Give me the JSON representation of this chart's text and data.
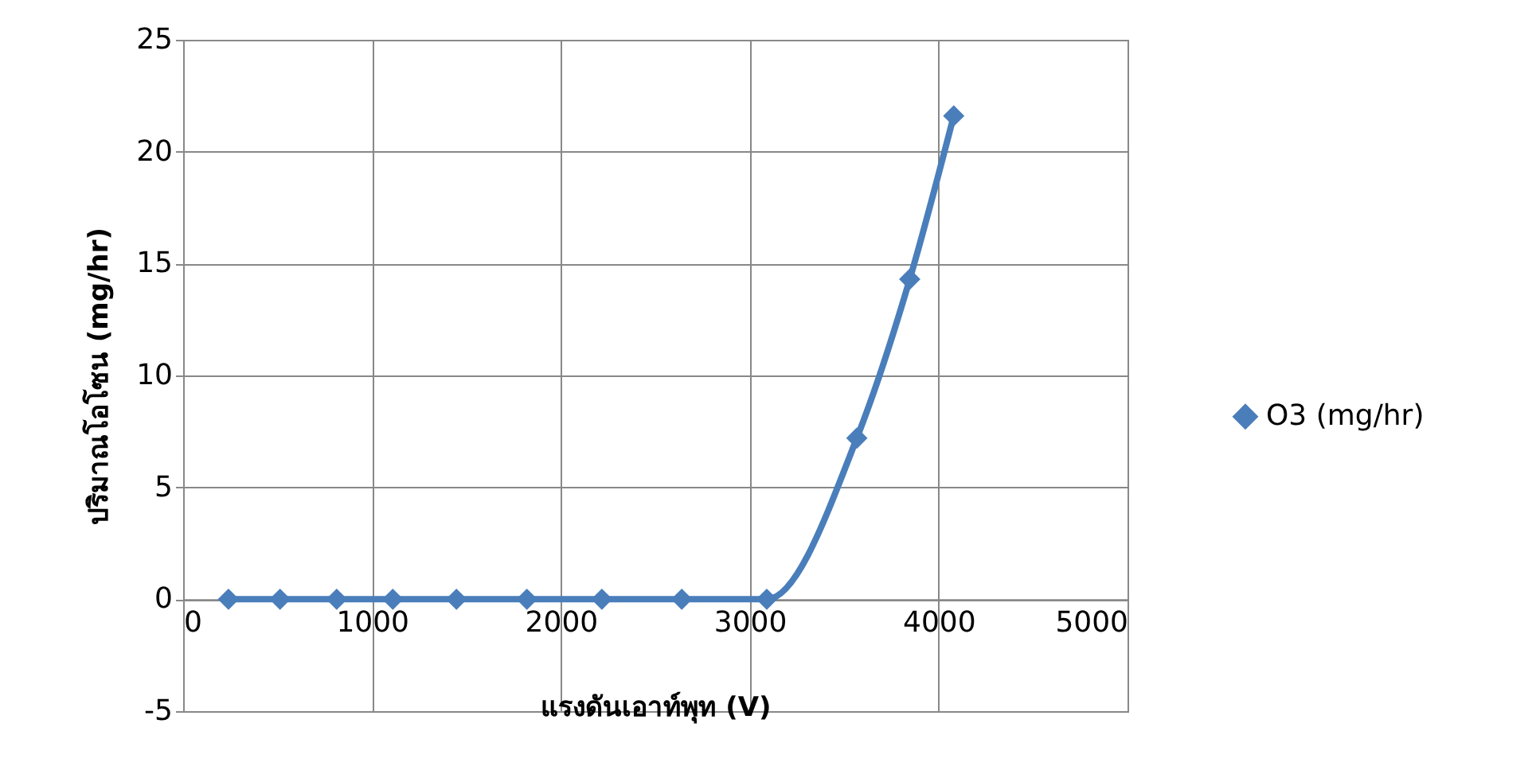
{
  "chart_data": {
    "type": "line",
    "xlabel": "แรงดันเอาท์พุท (V)",
    "ylabel": "ปริมาณโอโซน (mg/hr)",
    "x": [
      240,
      513,
      813,
      1110,
      1447,
      1820,
      2217,
      2640,
      3090,
      3567,
      3847,
      4080
    ],
    "series": [
      {
        "name": "O3 (mg/hr)",
        "color": "#4a7ebb",
        "values": [
          0,
          0,
          0,
          0,
          0,
          0,
          0,
          0,
          0,
          7.2,
          14.3,
          21.6
        ]
      }
    ],
    "xlim": [
      0,
      5000
    ],
    "xticks": [
      0,
      1000,
      2000,
      3000,
      4000,
      5000
    ],
    "ylim": [
      -5,
      25
    ],
    "yticks": [
      -5,
      0,
      5,
      10,
      15,
      20,
      25
    ],
    "grid": true,
    "legend": "right",
    "marker": "diamond",
    "line_style": "solid"
  }
}
